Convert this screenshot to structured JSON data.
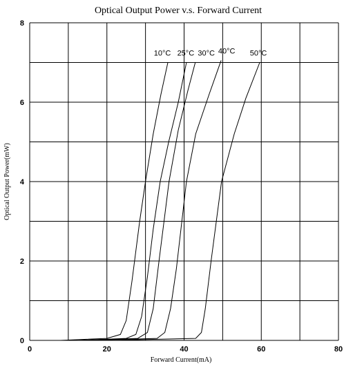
{
  "chart_data": {
    "type": "line",
    "title": "Optical Output Power v.s. Forward Current",
    "x_label": "Forward Current(mA)",
    "y_label": "Optical Output Power(mW)",
    "xlim": [
      0,
      80
    ],
    "xticks": [
      0,
      20,
      40,
      60,
      80
    ],
    "x_minor_grid": [
      10,
      30,
      50,
      70
    ],
    "ylim": [
      0,
      8
    ],
    "yticks": [
      0,
      2,
      4,
      6,
      8
    ],
    "y_minor_grid": [
      1,
      3,
      5,
      7
    ],
    "grid": true,
    "series": [
      {
        "name": "10°C",
        "color": "#000000",
        "x": [
          8,
          20,
          23.5,
          25,
          26.5,
          28.5,
          30,
          32,
          34,
          35.8
        ],
        "values": [
          0,
          0.05,
          0.15,
          0.5,
          1.5,
          3,
          4,
          5.2,
          6.2,
          7.0
        ]
      },
      {
        "name": "25°C",
        "color": "#000000",
        "x": [
          12,
          25,
          27.5,
          29,
          30.5,
          32,
          33.8,
          36,
          38.5,
          40.6
        ],
        "values": [
          0,
          0.05,
          0.15,
          0.6,
          1.6,
          2.8,
          4,
          5,
          6,
          7.0
        ]
      },
      {
        "name": "30°C",
        "color": "#000000",
        "x": [
          12,
          28,
          30.5,
          32,
          33.5,
          36.1,
          38.5,
          41,
          42.9
        ],
        "values": [
          0,
          0.05,
          0.2,
          0.8,
          2,
          4,
          5.3,
          6.3,
          7.0
        ]
      },
      {
        "name": "40°C",
        "color": "#000000",
        "x": [
          15,
          33,
          35,
          36.5,
          38,
          40.6,
          43,
          46.5,
          49.6
        ],
        "values": [
          0,
          0.05,
          0.2,
          0.8,
          1.8,
          4,
          5.2,
          6.2,
          7.05
        ]
      },
      {
        "name": "50°C",
        "color": "#000000",
        "x": [
          20,
          43,
          44.5,
          45.5,
          47,
          49.7,
          53,
          56,
          59.6
        ],
        "values": [
          0,
          0.05,
          0.2,
          0.8,
          2,
          4,
          5.2,
          6.1,
          7.0
        ]
      }
    ]
  }
}
